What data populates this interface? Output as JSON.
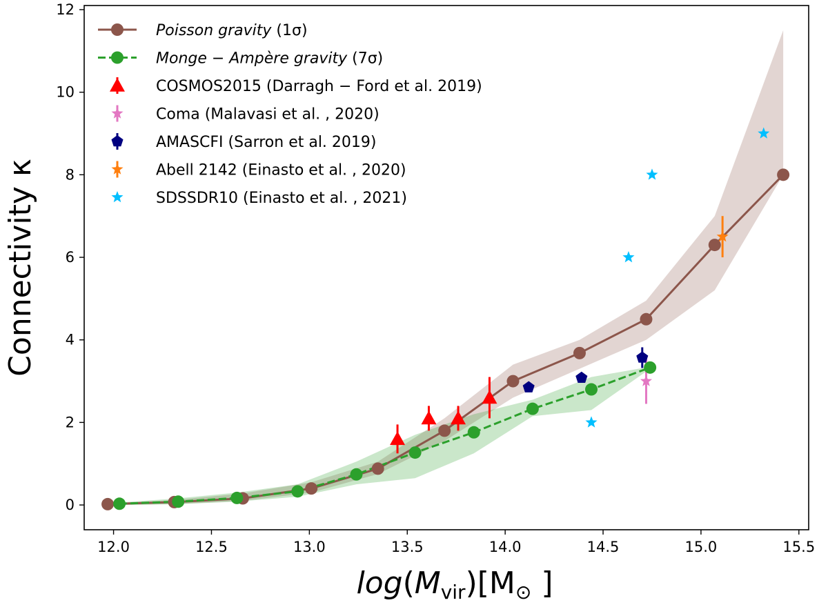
{
  "chart_data": {
    "type": "line",
    "title": "",
    "xlabel": "log(M_vir)[M_⊙]",
    "ylabel": "Connectivity κ",
    "xlim": [
      11.85,
      15.55
    ],
    "ylim": [
      -0.6,
      12.1
    ],
    "xticks": [
      12.0,
      12.5,
      13.0,
      13.5,
      14.0,
      14.5,
      15.0,
      15.5
    ],
    "xtick_labels": [
      "12.0",
      "12.5",
      "13.0",
      "13.5",
      "14.0",
      "14.5",
      "15.0",
      "15.5"
    ],
    "yticks": [
      0,
      2,
      4,
      6,
      8,
      10,
      12
    ],
    "ytick_labels": [
      "0",
      "2",
      "4",
      "6",
      "8",
      "10",
      "12"
    ],
    "legend_position": "upper-left",
    "series": [
      {
        "name": "Poisson gravity (1σ)",
        "legend_main": "Poisson gravity",
        "legend_suffix": " (1σ)",
        "italic": true,
        "kind": "line",
        "linestyle": "solid",
        "marker": "circle",
        "color": "#8c564b",
        "band_color": "#8c564b",
        "x": [
          11.97,
          12.31,
          12.66,
          13.01,
          13.35,
          13.69,
          14.04,
          14.38,
          14.72,
          15.07,
          15.42
        ],
        "y": [
          0.02,
          0.07,
          0.16,
          0.4,
          0.88,
          1.8,
          3.0,
          3.68,
          4.5,
          6.3,
          8.0
        ],
        "band_low": [
          0.0,
          0.02,
          0.1,
          0.3,
          0.75,
          1.55,
          2.6,
          3.3,
          4.0,
          5.2,
          8.0
        ],
        "band_high": [
          0.04,
          0.12,
          0.28,
          0.55,
          1.05,
          2.1,
          3.4,
          4.0,
          4.95,
          7.0,
          11.5
        ]
      },
      {
        "name": "Monge − Ampère gravity (7σ)",
        "legend_main": "Monge − Ampère gravity",
        "legend_suffix": " (7σ)",
        "italic": true,
        "kind": "line",
        "linestyle": "dashed",
        "marker": "circle",
        "color": "#2ca02c",
        "band_color": "#2ca02c",
        "x": [
          12.03,
          12.33,
          12.63,
          12.94,
          13.24,
          13.54,
          13.84,
          14.14,
          14.44,
          14.74
        ],
        "y": [
          0.03,
          0.08,
          0.17,
          0.33,
          0.74,
          1.27,
          1.76,
          2.33,
          2.8,
          3.33
        ],
        "band_low": [
          0.0,
          0.02,
          0.08,
          0.2,
          0.5,
          0.65,
          1.25,
          2.15,
          2.3,
          3.3
        ],
        "band_high": [
          0.06,
          0.16,
          0.3,
          0.5,
          1.05,
          1.7,
          2.2,
          2.55,
          3.1,
          3.35
        ]
      },
      {
        "name": "COSMOS2015 (Darragh − Ford et al. 2019)",
        "kind": "errorbar",
        "marker": "triangle-up",
        "color": "#ff0000",
        "x": [
          13.45,
          13.61,
          13.76,
          13.92
        ],
        "y": [
          1.6,
          2.1,
          2.1,
          2.6
        ],
        "err": [
          0.35,
          0.3,
          0.3,
          0.5
        ]
      },
      {
        "name": "Coma (Malavasi et al. , 2020)",
        "kind": "errorbar",
        "marker": "star",
        "color": "#e377c2",
        "x": [
          14.72
        ],
        "y": [
          3.0
        ],
        "err": [
          0.55
        ]
      },
      {
        "name": "AMASCFI (Sarron et al. 2019)",
        "kind": "errorbar",
        "marker": "pentagon",
        "color": "#000080",
        "x": [
          14.12,
          14.39,
          14.7
        ],
        "y": [
          2.85,
          3.08,
          3.57
        ],
        "err": [
          0.0,
          0.0,
          0.25
        ]
      },
      {
        "name": "Abell 2142 (Einasto et al. , 2020)",
        "kind": "errorbar",
        "marker": "star",
        "color": "#ff7f0e",
        "x": [
          15.11
        ],
        "y": [
          6.5
        ],
        "err": [
          0.5
        ]
      },
      {
        "name": "SDSSDR10 (Einasto et al. , 2021)",
        "kind": "scatter",
        "marker": "star",
        "color": "#00bfff",
        "x": [
          14.44,
          14.63,
          14.75,
          15.32
        ],
        "y": [
          2.0,
          6.0,
          8.0,
          9.0
        ]
      }
    ]
  }
}
